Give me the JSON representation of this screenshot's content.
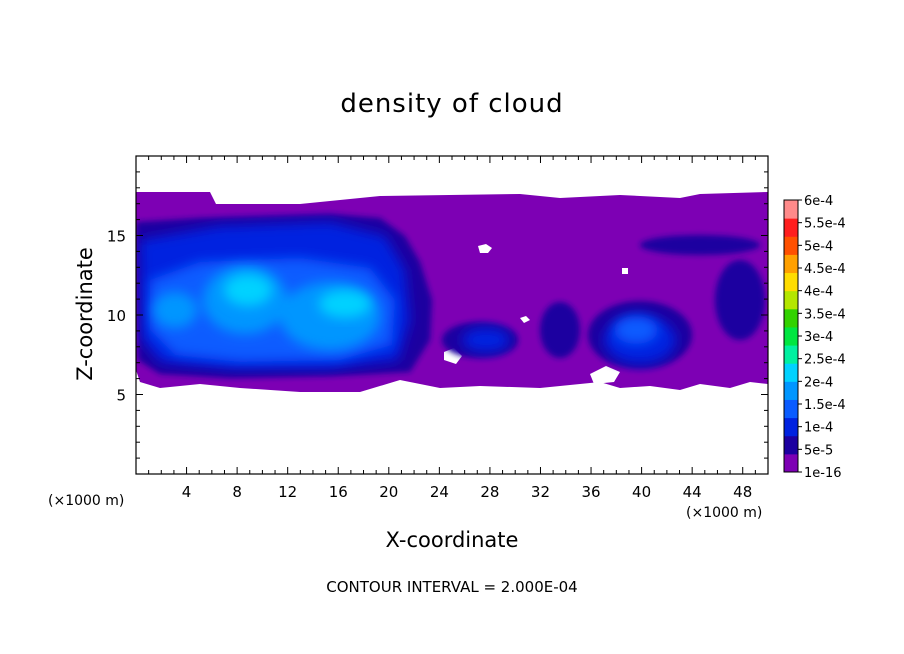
{
  "chart_data": {
    "type": "heatmap",
    "title": "density of cloud",
    "xlabel": "X-coordinate",
    "ylabel": "Z-coordinate",
    "x_unit": "(×1000 m)",
    "y_unit": "(×1000 m)",
    "xlim": [
      0,
      50
    ],
    "ylim": [
      0,
      20
    ],
    "x_ticks": [
      4,
      8,
      12,
      16,
      20,
      24,
      28,
      32,
      36,
      40,
      44,
      48
    ],
    "y_ticks": [
      5,
      10,
      15
    ],
    "footer": "CONTOUR INTERVAL = 2.000E-04",
    "colorbar": {
      "levels": [
        "1e-16",
        "5e-5",
        "1e-4",
        "1.5e-4",
        "2e-4",
        "2.5e-4",
        "3e-4",
        "3.5e-4",
        "4e-4",
        "4.5e-4",
        "5e-4",
        "5.5e-4",
        "6e-4"
      ],
      "colors": [
        "#7d00b4",
        "#1c00a0",
        "#0022e0",
        "#0a5cff",
        "#0096ff",
        "#00d2ff",
        "#00f0a0",
        "#00e640",
        "#32d200",
        "#b4e600",
        "#ffdc00",
        "#ffa000",
        "#ff5000",
        "#ff1e1e",
        "#ff8a8a"
      ]
    },
    "cloud_region": {
      "x_range": [
        0,
        50
      ],
      "z_range": [
        5.2,
        17.7
      ],
      "max_cores": [
        {
          "x": 9.5,
          "z": 11.5,
          "level": "2e-4"
        },
        {
          "x": 16.5,
          "z": 10.5,
          "level": "2e-4"
        },
        {
          "x": 41,
          "z": 8.7,
          "level": "1.5e-4"
        }
      ]
    }
  }
}
